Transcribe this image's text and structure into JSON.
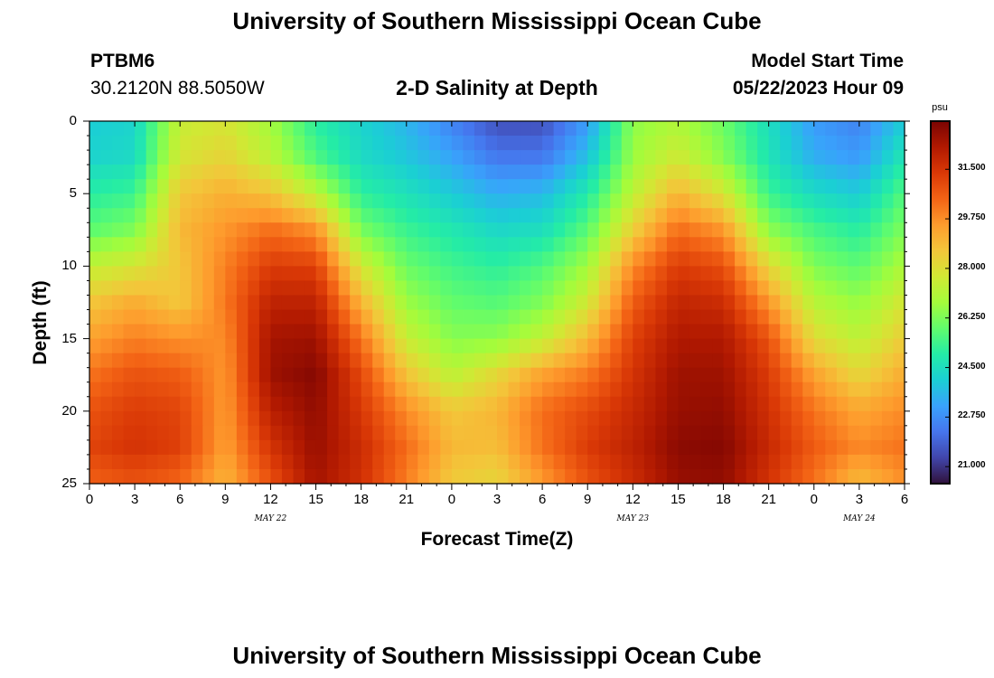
{
  "header": {
    "title_top": "University of Southern Mississippi Ocean Cube",
    "title_bottom": "University of Southern Mississippi Ocean Cube",
    "station_id": "PTBM6",
    "coords": "30.2120N  88.5050W",
    "plot_title": "2-D Salinity at Depth",
    "model_label": "Model Start Time",
    "model_time": "05/22/2023 Hour 09"
  },
  "colorbar": {
    "unit": "psu",
    "ticks": [
      "31.500",
      "29.750",
      "28.000",
      "26.250",
      "24.500",
      "22.750",
      "21.000"
    ]
  },
  "chart_data": {
    "type": "heatmap",
    "title": "2-D Salinity at Depth",
    "xlabel": "Forecast Time(Z)",
    "ylabel": "Depth (ft)",
    "x_hours": [
      0,
      3,
      6,
      9,
      12,
      15,
      18,
      21,
      24,
      27,
      30,
      33,
      36,
      39,
      42,
      45,
      48,
      51,
      54
    ],
    "x_tick_labels": [
      "0",
      "3",
      "6",
      "9",
      "12",
      "15",
      "18",
      "21",
      "0",
      "3",
      "6",
      "9",
      "12",
      "15",
      "18",
      "21",
      "0",
      "3",
      "6"
    ],
    "date_labels": [
      {
        "hour": 12,
        "text": "MAY 22"
      },
      {
        "hour": 36,
        "text": "MAY 23"
      },
      {
        "hour": 51,
        "text": "MAY 24"
      }
    ],
    "y_ticks": [
      0,
      5,
      10,
      15,
      20,
      25
    ],
    "ylim": [
      0,
      25
    ],
    "xlim": [
      0,
      54
    ],
    "zlim": [
      20.4,
      33.2
    ],
    "colormap": [
      "#30123b",
      "#4145ab",
      "#4675ed",
      "#39a2fc",
      "#1bcfd4",
      "#24eca6",
      "#61fc6c",
      "#a4fc3b",
      "#d1e834",
      "#f3c63a",
      "#fe9b2d",
      "#f36315",
      "#d93806",
      "#b11901",
      "#7a0402"
    ],
    "salinity_grid_note": "rows = depth 0..25 ft step 2.5 ft, cols = forecast hour 0..54 step 3 h, values in psu",
    "salinity_grid": [
      [
        24.0,
        24.2,
        27.5,
        27.8,
        26.8,
        25.0,
        24.2,
        23.5,
        22.5,
        21.5,
        21.5,
        23.0,
        26.5,
        27.0,
        26.0,
        24.5,
        23.0,
        22.5,
        24.0
      ],
      [
        24.2,
        24.4,
        27.8,
        28.3,
        27.3,
        25.6,
        24.4,
        23.9,
        23.2,
        22.3,
        22.3,
        23.8,
        26.7,
        27.7,
        26.4,
        24.7,
        23.4,
        23.0,
        24.8
      ],
      [
        25.0,
        25.3,
        28.6,
        29.1,
        28.7,
        27.3,
        25.1,
        24.6,
        24.0,
        23.4,
        23.6,
        24.9,
        27.3,
        29.0,
        27.8,
        25.3,
        24.4,
        24.0,
        25.7
      ],
      [
        25.8,
        26.3,
        28.9,
        29.6,
        30.3,
        29.7,
        26.2,
        25.3,
        24.8,
        24.3,
        24.5,
        25.8,
        28.4,
        30.3,
        29.6,
        26.5,
        25.5,
        25.0,
        26.3
      ],
      [
        27.4,
        27.8,
        28.6,
        30.0,
        31.3,
        31.2,
        27.7,
        26.0,
        25.4,
        25.1,
        25.6,
        26.8,
        29.8,
        31.3,
        30.9,
        28.2,
        26.3,
        25.8,
        27.0
      ],
      [
        28.6,
        29.2,
        28.6,
        30.1,
        32.0,
        32.0,
        29.0,
        26.7,
        25.9,
        25.7,
        26.3,
        27.7,
        30.6,
        31.9,
        31.7,
        29.6,
        27.2,
        26.6,
        27.8
      ],
      [
        29.4,
        30.0,
        29.7,
        29.8,
        32.5,
        32.6,
        30.2,
        27.5,
        26.4,
        26.5,
        27.4,
        28.9,
        31.2,
        32.3,
        32.3,
        30.8,
        28.1,
        27.3,
        28.5
      ],
      [
        30.2,
        30.8,
        30.6,
        29.6,
        32.6,
        33.0,
        31.0,
        28.7,
        27.3,
        28.2,
        29.4,
        30.1,
        31.5,
        32.6,
        32.6,
        31.3,
        29.4,
        28.2,
        29.2
      ],
      [
        30.8,
        31.3,
        31.1,
        29.5,
        32.1,
        32.8,
        31.4,
        29.8,
        28.6,
        29.0,
        30.3,
        31.0,
        31.8,
        32.7,
        32.8,
        31.6,
        30.2,
        29.3,
        29.8
      ],
      [
        31.1,
        31.5,
        31.2,
        29.4,
        31.5,
        32.7,
        31.7,
        30.3,
        28.9,
        28.8,
        30.2,
        31.3,
        32.0,
        32.9,
        33.0,
        31.8,
        30.6,
        29.8,
        30.2
      ],
      [
        30.5,
        30.8,
        30.4,
        29.0,
        30.8,
        32.5,
        31.6,
        30.0,
        28.5,
        28.2,
        29.5,
        30.8,
        31.7,
        32.7,
        32.8,
        31.5,
        30.2,
        28.8,
        29.7
      ]
    ]
  }
}
